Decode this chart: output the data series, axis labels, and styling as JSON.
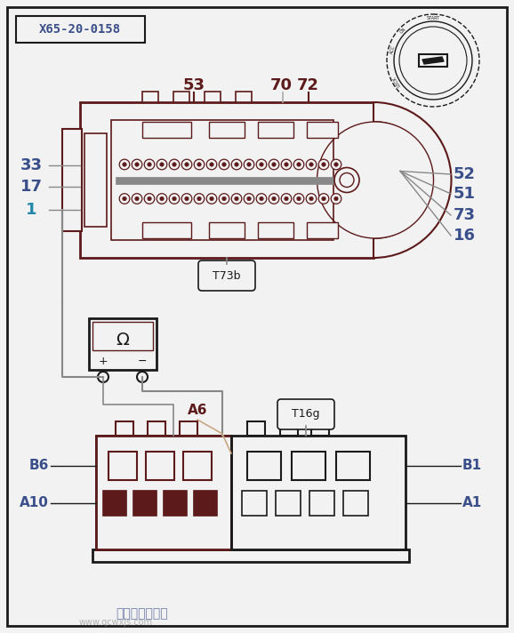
{
  "bg": "#f2f2f2",
  "black": "#1a1a1a",
  "brown": "#5c1a1a",
  "blue": "#3a4f8a",
  "cyan1": "#2288aa",
  "gray": "#888888",
  "lgray": "#aaaaaa",
  "title": "X65-20-0158",
  "t73b": "T73b",
  "t16g": "T16g",
  "a6": "A6",
  "label53": "53",
  "label70": "70",
  "label72": "72",
  "label33": "33",
  "label17": "17",
  "label1": "1",
  "label52": "52",
  "label51": "51",
  "label73": "73",
  "label16": "16",
  "labelB6": "B6",
  "labelA10": "A10",
  "labelB1": "B1",
  "labelA1": "A1",
  "watermark1": "汽车维修技术网",
  "watermark2": "www.qcwxjs.com"
}
